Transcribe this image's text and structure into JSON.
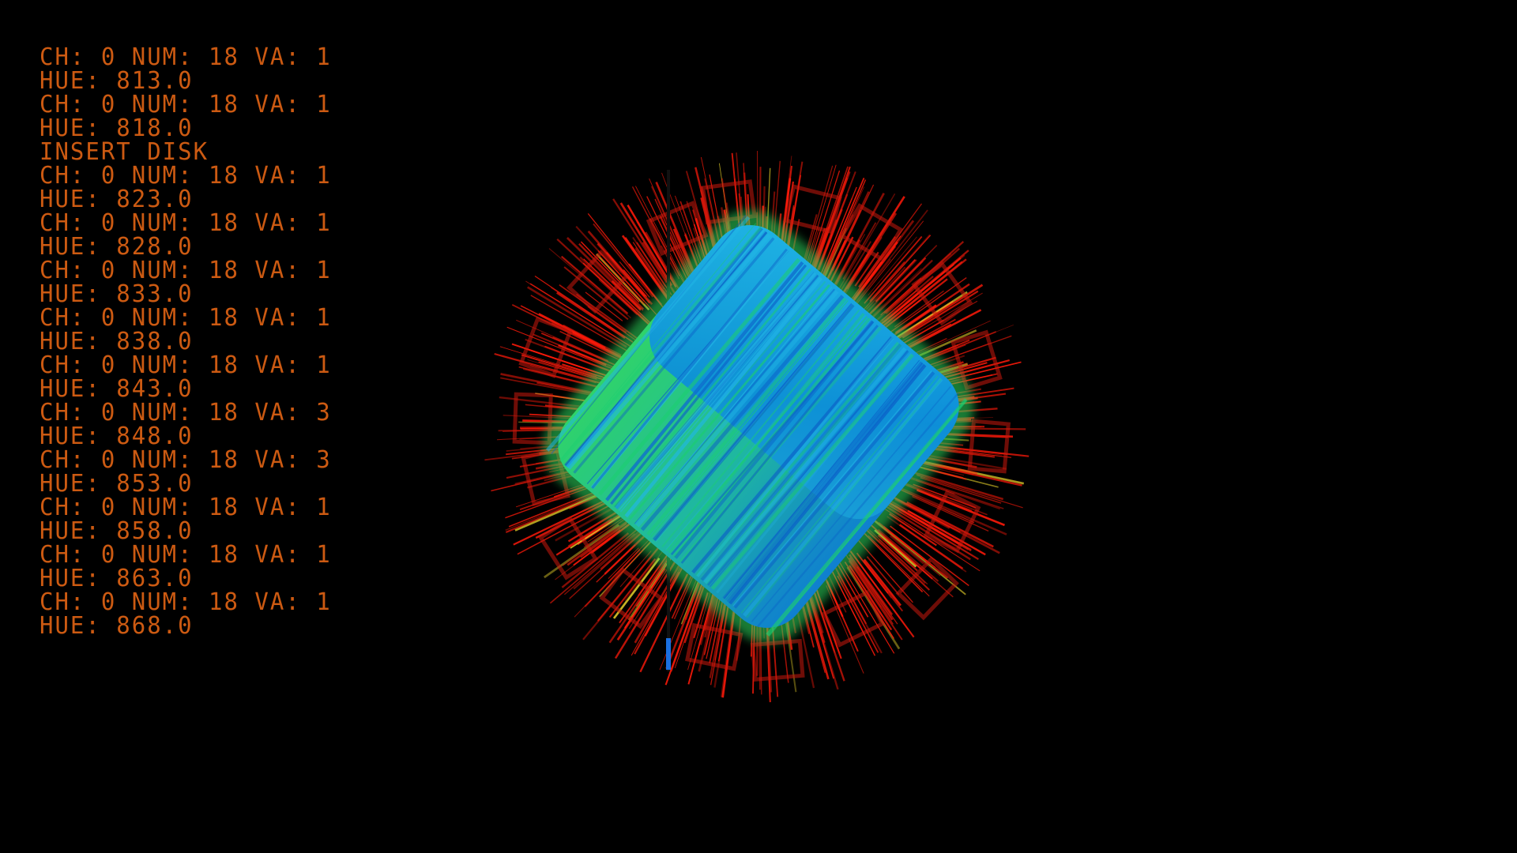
{
  "log": {
    "lines": [
      "CH: 0 NUM: 18 VA: 1",
      "HUE: 813.0",
      "CH: 0 NUM: 18 VA: 1",
      "HUE: 818.0",
      "INSERT DISK",
      "CH: 0 NUM: 18 VA: 1",
      "HUE: 823.0",
      "CH: 0 NUM: 18 VA: 1",
      "HUE: 828.0",
      "CH: 0 NUM: 18 VA: 1",
      "HUE: 833.0",
      "CH: 0 NUM: 18 VA: 1",
      "HUE: 838.0",
      "CH: 0 NUM: 18 VA: 1",
      "HUE: 843.0",
      "CH: 0 NUM: 18 VA: 3",
      "HUE: 848.0",
      "CH: 0 NUM: 18 VA: 3",
      "HUE: 853.0",
      "CH: 0 NUM: 18 VA: 1",
      "HUE: 858.0",
      "CH: 0 NUM: 18 VA: 1",
      "HUE: 863.0",
      "CH: 0 NUM: 18 VA: 1",
      "HUE: 868.0"
    ]
  },
  "colors": {
    "background": "#000000",
    "log_text": "#cc5a12",
    "spikes": "#ff1a0a",
    "cylinder_top": "#19a6e0",
    "cylinder_side": "#2fd06a",
    "marker": "#1a6fe0"
  },
  "icons": {
    "visualizer": "rotating-cylinder-visualizer",
    "marker": "vertical-bar-marker"
  }
}
